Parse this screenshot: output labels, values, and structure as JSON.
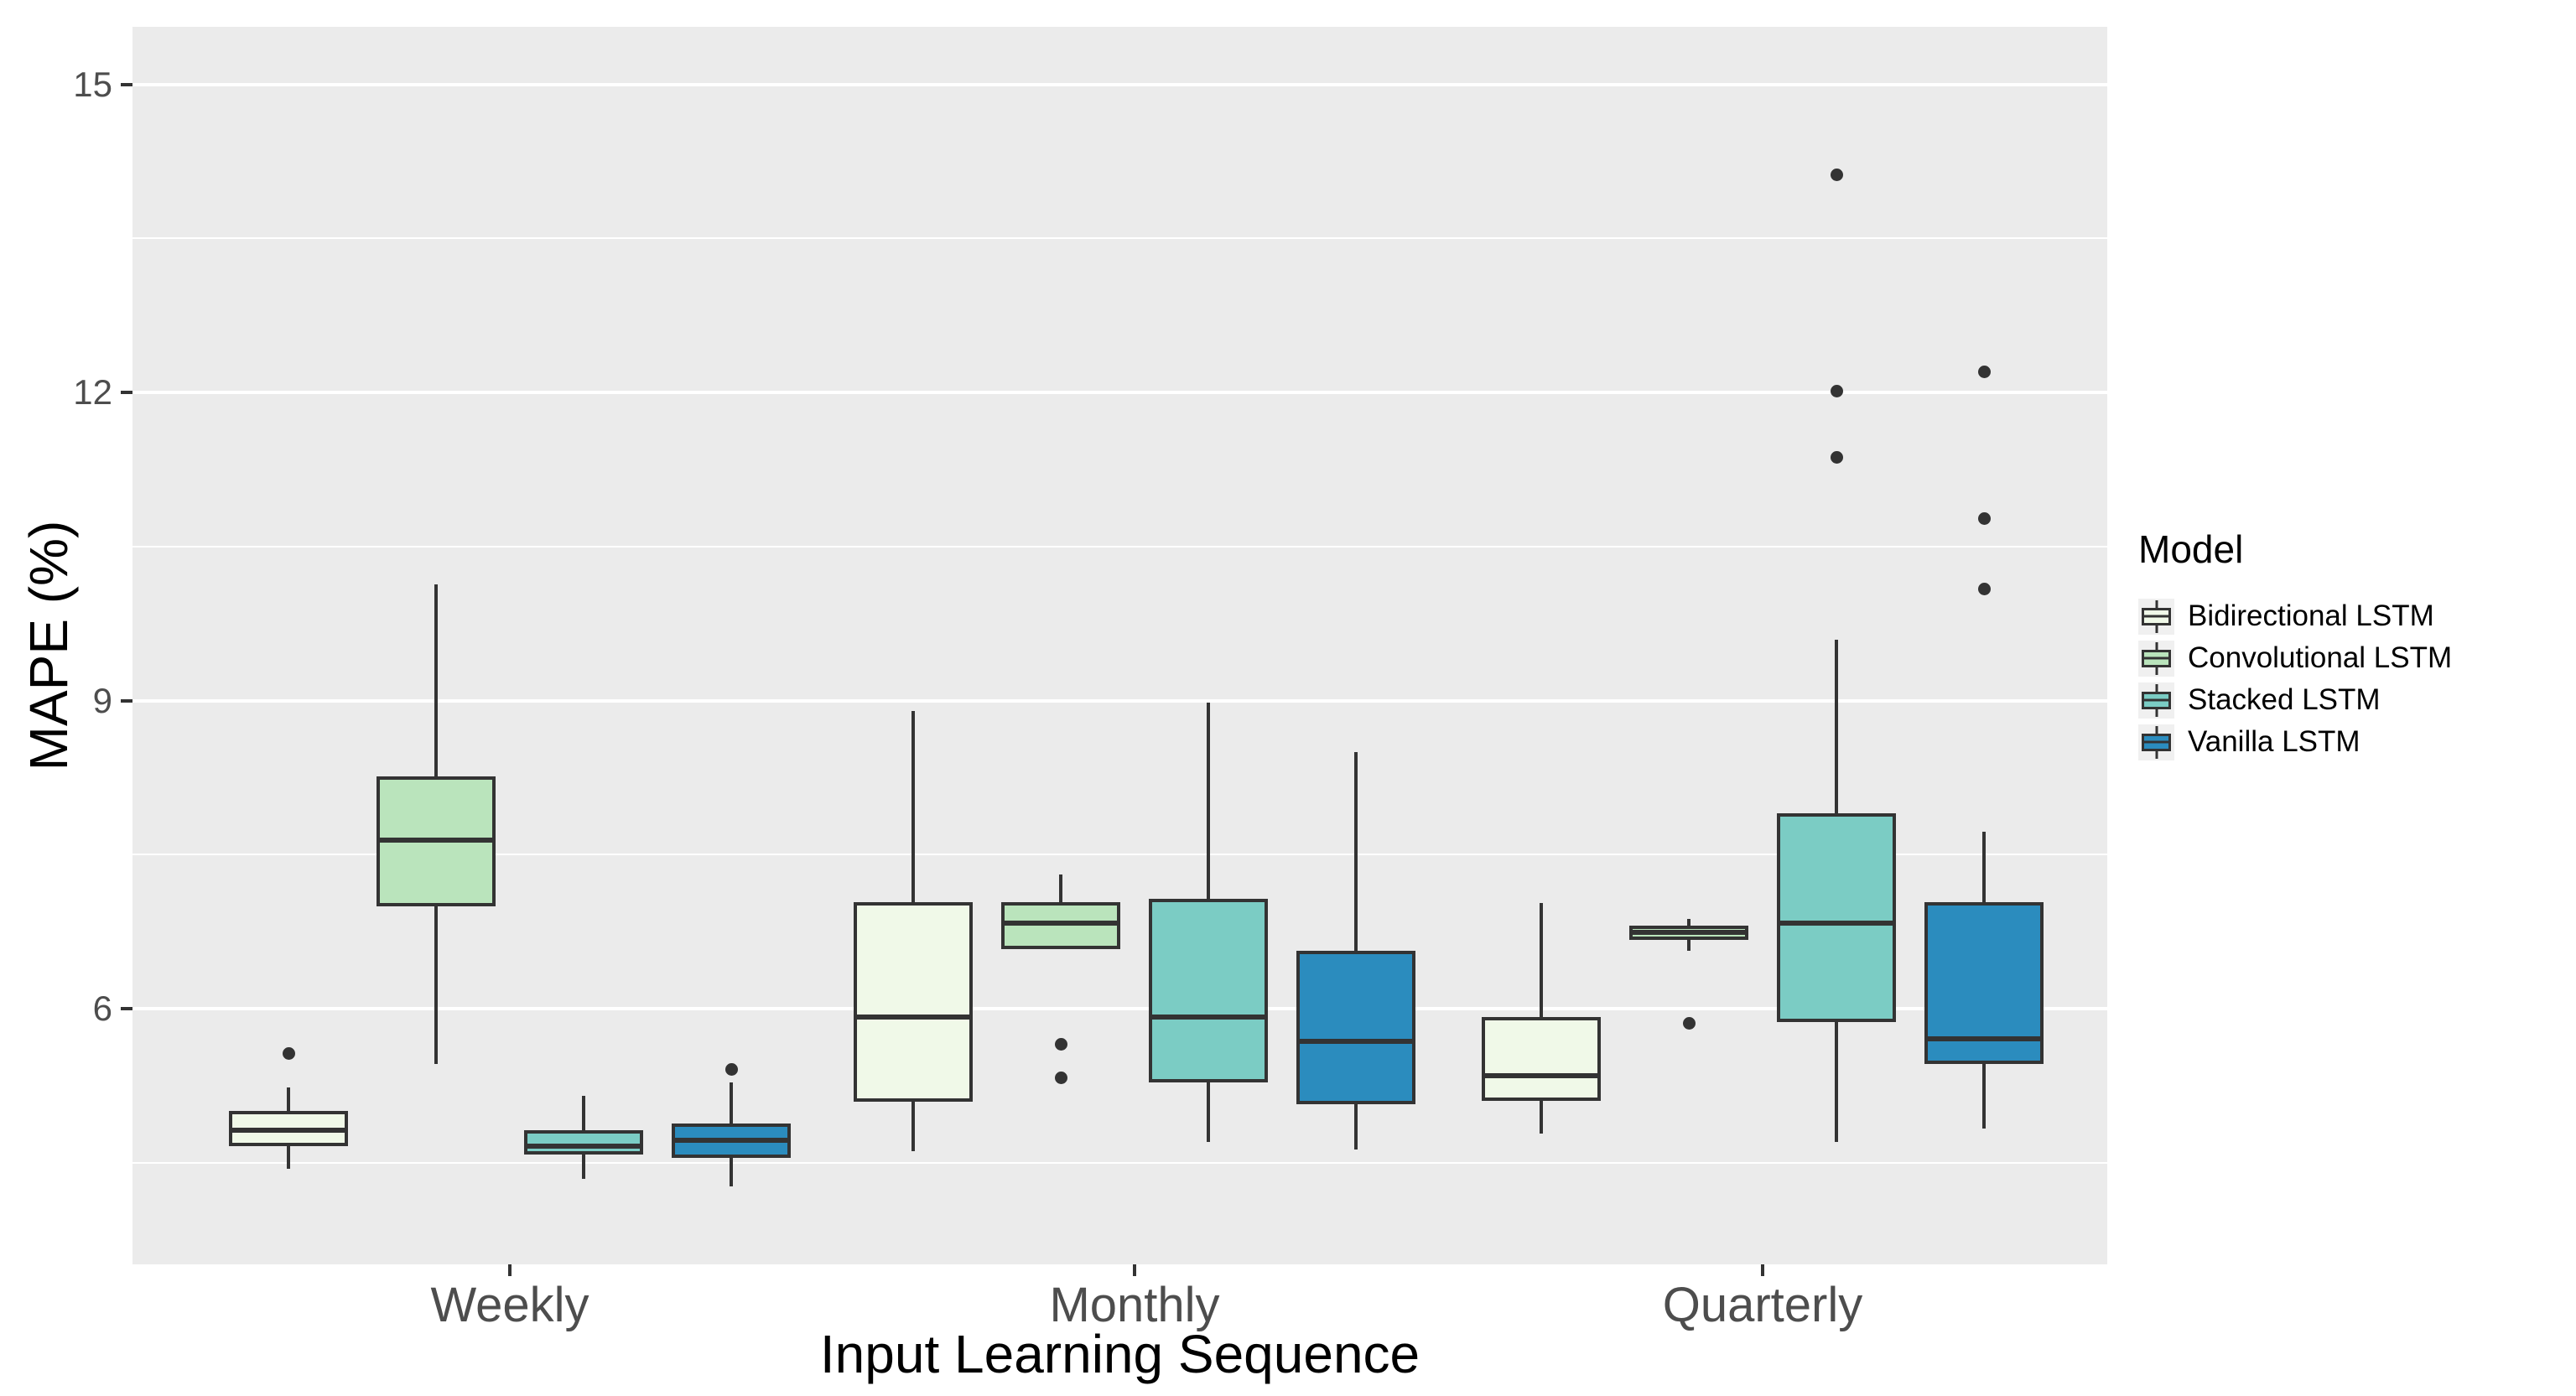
{
  "figure": {
    "x_axis_title": "Input Learning Sequence",
    "y_axis_title": "MAPE (%)",
    "legend_title": "Model"
  },
  "colors": {
    "panel_background": "#EBEBEB",
    "gridline": "#FFFFFF",
    "box_stroke": "#333333",
    "axis_text": "#4D4D4D",
    "series_fills": [
      "#F0F9E8",
      "#BAE4BC",
      "#7BCCC4",
      "#2B8CBE"
    ]
  },
  "chart_data": {
    "type": "boxplot",
    "title": "",
    "xlabel": "Input Learning Sequence",
    "ylabel": "MAPE (%)",
    "categories": [
      "Weekly",
      "Monthly",
      "Quarterly"
    ],
    "y_axis": {
      "ticks": [
        6,
        9,
        12,
        15
      ],
      "tick_labels": [
        "6",
        "9",
        "12",
        "15"
      ],
      "minor_gridlines": [
        4.5,
        7.5,
        10.5,
        13.5
      ],
      "range": [
        3.51,
        15.56
      ],
      "grid": true
    },
    "legend": {
      "title": "Model",
      "position": "right"
    },
    "series": [
      {
        "name": "Bidirectional LSTM",
        "color": "#F0F9E8",
        "boxes": [
          {
            "category": "Weekly",
            "whisker_low": 4.44,
            "q1": 4.66,
            "median": 4.82,
            "q3": 5.0,
            "whisker_high": 5.23,
            "outliers": [
              5.56
            ]
          },
          {
            "category": "Monthly",
            "whisker_low": 4.61,
            "q1": 5.09,
            "median": 5.92,
            "q3": 7.04,
            "whisker_high": 8.9,
            "outliers": []
          },
          {
            "category": "Quarterly",
            "whisker_low": 4.78,
            "q1": 5.1,
            "median": 5.35,
            "q3": 5.92,
            "whisker_high": 7.03,
            "outliers": []
          }
        ]
      },
      {
        "name": "Convolutional LSTM",
        "color": "#BAE4BC",
        "boxes": [
          {
            "category": "Weekly",
            "whisker_low": 5.46,
            "q1": 7.0,
            "median": 7.64,
            "q3": 8.26,
            "whisker_high": 10.13,
            "outliers": []
          },
          {
            "category": "Monthly",
            "whisker_low": 6.58,
            "q1": 6.58,
            "median": 6.83,
            "q3": 7.04,
            "whisker_high": 7.31,
            "outliers": [
              5.65,
              5.33
            ]
          },
          {
            "category": "Quarterly",
            "whisker_low": 6.56,
            "q1": 6.67,
            "median": 6.74,
            "q3": 6.81,
            "whisker_high": 6.87,
            "outliers": [
              5.86
            ]
          }
        ]
      },
      {
        "name": "Stacked LSTM",
        "color": "#7BCCC4",
        "boxes": [
          {
            "category": "Weekly",
            "whisker_low": 4.34,
            "q1": 4.58,
            "median": 4.66,
            "q3": 4.82,
            "whisker_high": 5.15,
            "outliers": []
          },
          {
            "category": "Monthly",
            "whisker_low": 4.7,
            "q1": 5.28,
            "median": 5.92,
            "q3": 7.07,
            "whisker_high": 8.98,
            "outliers": []
          },
          {
            "category": "Quarterly",
            "whisker_low": 4.7,
            "q1": 5.87,
            "median": 6.83,
            "q3": 7.9,
            "whisker_high": 9.59,
            "outliers": [
              14.12,
              12.01,
              11.37
            ]
          }
        ]
      },
      {
        "name": "Vanilla LSTM",
        "color": "#2B8CBE",
        "boxes": [
          {
            "category": "Weekly",
            "whisker_low": 4.27,
            "q1": 4.55,
            "median": 4.72,
            "q3": 4.88,
            "whisker_high": 5.28,
            "outliers": [
              5.41
            ]
          },
          {
            "category": "Monthly",
            "whisker_low": 4.63,
            "q1": 5.07,
            "median": 5.68,
            "q3": 6.56,
            "whisker_high": 8.5,
            "outliers": []
          },
          {
            "category": "Quarterly",
            "whisker_low": 4.83,
            "q1": 5.46,
            "median": 5.71,
            "q3": 7.04,
            "whisker_high": 7.72,
            "outliers": [
              12.2,
              10.77,
              10.09
            ]
          }
        ]
      }
    ]
  }
}
